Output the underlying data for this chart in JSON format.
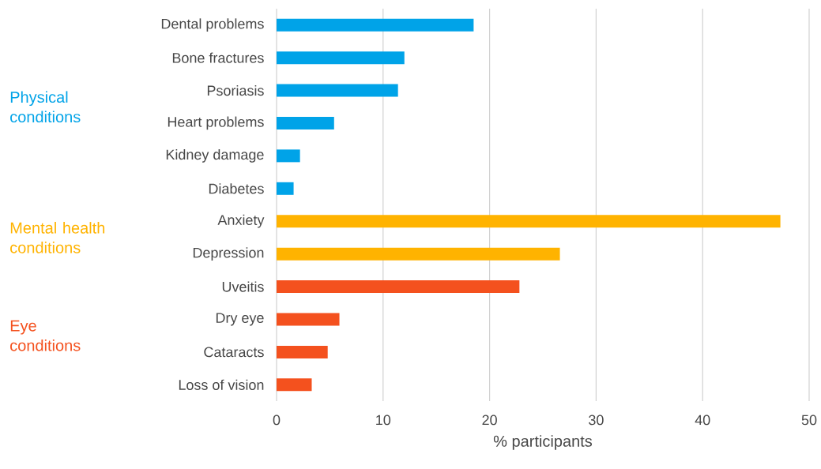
{
  "chart_data": {
    "type": "bar",
    "orientation": "horizontal",
    "xlabel": "% participants",
    "categories": [
      "Dental problems",
      "Bone fractures",
      "Psoriasis",
      "Heart problems",
      "Kidney damage",
      "Diabetes",
      "Anxiety",
      "Depression",
      "Uveitis",
      "Dry eye",
      "Cataracts",
      "Loss of vision"
    ],
    "series": [
      {
        "name": "Physical conditions",
        "color": "#00a3e8",
        "values": [
          18.5,
          12.0,
          11.4,
          5.4,
          2.2,
          1.6,
          null,
          null,
          null,
          null,
          null,
          null
        ]
      },
      {
        "name": "Mental health conditions",
        "color": "#ffb300",
        "values": [
          null,
          null,
          null,
          null,
          null,
          null,
          47.3,
          26.6,
          null,
          null,
          null,
          null
        ]
      },
      {
        "name": "Eye conditions",
        "color": "#f4511e",
        "values": [
          null,
          null,
          null,
          null,
          null,
          null,
          null,
          null,
          22.8,
          5.9,
          4.8,
          3.3
        ]
      }
    ],
    "xlim": [
      0,
      50
    ],
    "xticks": [
      0,
      10,
      20,
      30,
      40,
      50
    ],
    "grid": "x"
  }
}
